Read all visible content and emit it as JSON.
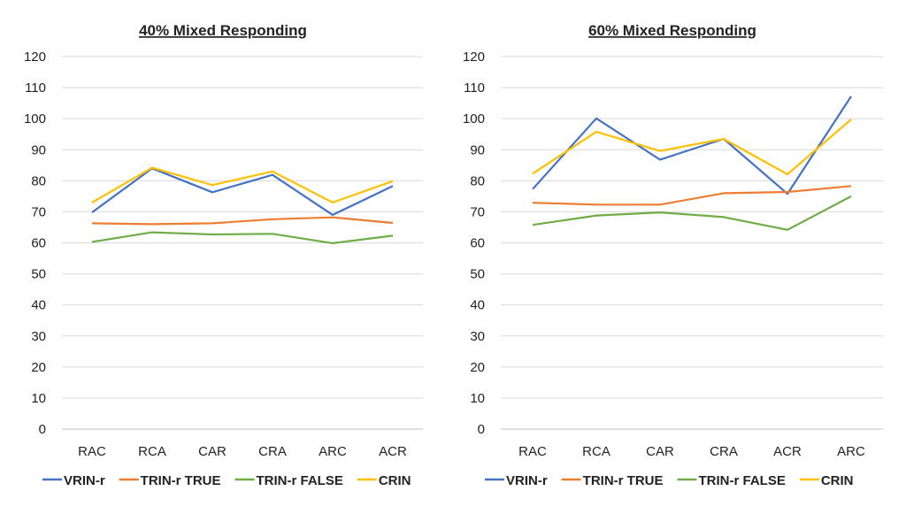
{
  "chart_data": [
    {
      "type": "line",
      "title": "40% Mixed Responding",
      "categories": [
        "RAC",
        "RCA",
        "CAR",
        "CRA",
        "ARC",
        "ACR"
      ],
      "ylim": [
        0,
        120
      ],
      "yticks": [
        "0",
        "10",
        "20",
        "30",
        "40",
        "50",
        "60",
        "70",
        "80",
        "90",
        "100",
        "110",
        "120"
      ],
      "grid": true,
      "legend": "bottom",
      "series": [
        {
          "name": "VRIN-r",
          "color": "#4472C4",
          "values": [
            69.8,
            84.0,
            76.3,
            81.9,
            69.0,
            78.3
          ]
        },
        {
          "name": "TRIN-r TRUE",
          "color": "#ED7D31",
          "values": [
            66.3,
            66.0,
            66.3,
            67.6,
            68.2,
            66.4
          ]
        },
        {
          "name": "TRIN-r FALSE",
          "color": "#70AD47",
          "values": [
            60.3,
            63.4,
            62.7,
            62.9,
            59.9,
            62.3
          ]
        },
        {
          "name": "CRIN",
          "color": "#FFC000",
          "values": [
            73.0,
            84.2,
            78.6,
            83.0,
            73.0,
            79.9
          ]
        }
      ]
    },
    {
      "type": "line",
      "title": "60% Mixed Responding",
      "categories": [
        "RAC",
        "RCA",
        "CAR",
        "CRA",
        "ACR",
        "ARC"
      ],
      "ylim": [
        0,
        120
      ],
      "yticks": [
        "0",
        "10",
        "20",
        "30",
        "40",
        "50",
        "60",
        "70",
        "80",
        "90",
        "100",
        "110",
        "120"
      ],
      "grid": true,
      "legend": "bottom",
      "series": [
        {
          "name": "VRIN-r",
          "color": "#4472C4",
          "values": [
            77.3,
            100.1,
            86.8,
            93.5,
            75.8,
            107.2
          ]
        },
        {
          "name": "TRIN-r TRUE",
          "color": "#ED7D31",
          "values": [
            72.9,
            72.3,
            72.3,
            76.0,
            76.4,
            78.3
          ]
        },
        {
          "name": "TRIN-r FALSE",
          "color": "#70AD47",
          "values": [
            65.8,
            68.8,
            69.8,
            68.3,
            64.2,
            75.0
          ]
        },
        {
          "name": "CRIN",
          "color": "#FFC000",
          "values": [
            82.3,
            95.8,
            89.6,
            93.5,
            82.1,
            99.8
          ]
        }
      ]
    }
  ]
}
